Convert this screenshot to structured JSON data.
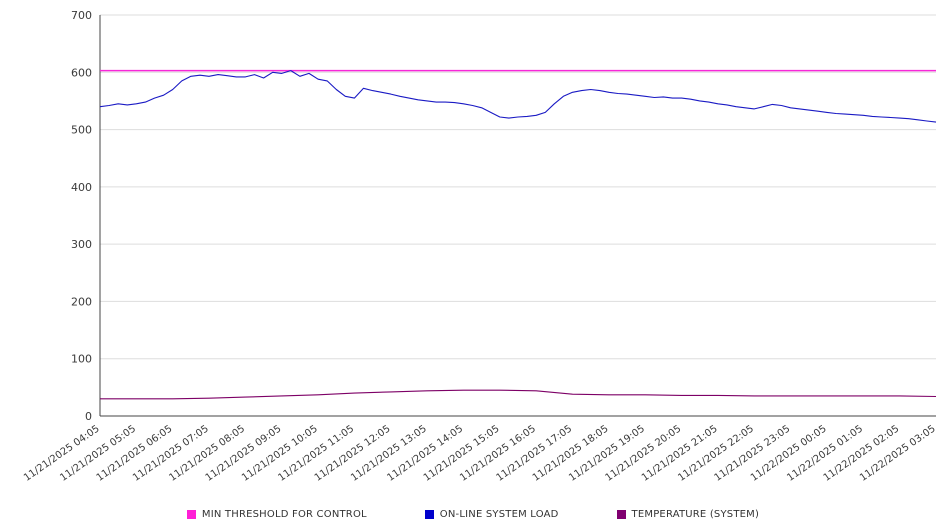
{
  "chart_data": {
    "type": "line",
    "title": "",
    "xlabel": "",
    "ylabel": "",
    "ylim": [
      0,
      700
    ],
    "y_ticks": [
      0,
      100,
      200,
      300,
      400,
      500,
      600,
      700
    ],
    "grid": "horizontal",
    "legend_position": "bottom-center",
    "x_labels": [
      "11/21/2025 04:05",
      "11/21/2025 05:05",
      "11/21/2025 06:05",
      "11/21/2025 07:05",
      "11/21/2025 08:05",
      "11/21/2025 09:05",
      "11/21/2025 10:05",
      "11/21/2025 11:05",
      "11/21/2025 12:05",
      "11/21/2025 13:05",
      "11/21/2025 14:05",
      "11/21/2025 15:05",
      "11/21/2025 16:05",
      "11/21/2025 17:05",
      "11/21/2025 18:05",
      "11/21/2025 19:05",
      "11/21/2025 20:05",
      "11/21/2025 21:05",
      "11/21/2025 22:05",
      "11/21/2025 23:05",
      "11/22/2025 00:05",
      "11/22/2025 01:05",
      "11/22/2025 02:05",
      "11/22/2025 03:05"
    ],
    "series": [
      {
        "name": "MIN THRESHOLD FOR CONTROL",
        "kind": "threshold",
        "color": "#f728d8",
        "value": 603
      },
      {
        "name": "ON-LINE SYSTEM LOAD",
        "kind": "line",
        "color": "#1a1ac4",
        "values": [
          540,
          542,
          545,
          543,
          545,
          548,
          555,
          560,
          570,
          585,
          593,
          595,
          593,
          596,
          594,
          592,
          592,
          596,
          590,
          600,
          598,
          603,
          593,
          598,
          588,
          585,
          570,
          558,
          555,
          572,
          568,
          565,
          562,
          558,
          555,
          552,
          550,
          548,
          548,
          547,
          545,
          542,
          538,
          530,
          522,
          520,
          522,
          523,
          525,
          530,
          545,
          558,
          565,
          568,
          570,
          568,
          565,
          563,
          562,
          560,
          558,
          556,
          557,
          555,
          555,
          553,
          550,
          548,
          545,
          543,
          540,
          538,
          536,
          540,
          544,
          542,
          538,
          536,
          534,
          532,
          530,
          528,
          527,
          526,
          525,
          523,
          522,
          521,
          520,
          519,
          517,
          515,
          513
        ]
      },
      {
        "name": "TEMPERATURE (SYSTEM)",
        "kind": "line",
        "color": "#7d0066",
        "values": [
          30,
          30,
          30,
          31,
          33,
          35,
          37,
          40,
          42,
          44,
          45,
          45,
          44,
          38,
          37,
          37,
          36,
          36,
          35,
          35,
          35,
          35,
          35,
          34
        ]
      }
    ],
    "legend": [
      {
        "label": "MIN THRESHOLD FOR CONTROL",
        "color": "#ff1fd6"
      },
      {
        "label": "ON-LINE SYSTEM LOAD",
        "color": "#0000cc"
      },
      {
        "label": "TEMPERATURE (SYSTEM)",
        "color": "#800070"
      }
    ],
    "axis_color": "#444444",
    "gridline_color": "#dddddd",
    "tick_label_color": "#3a3a3a"
  }
}
